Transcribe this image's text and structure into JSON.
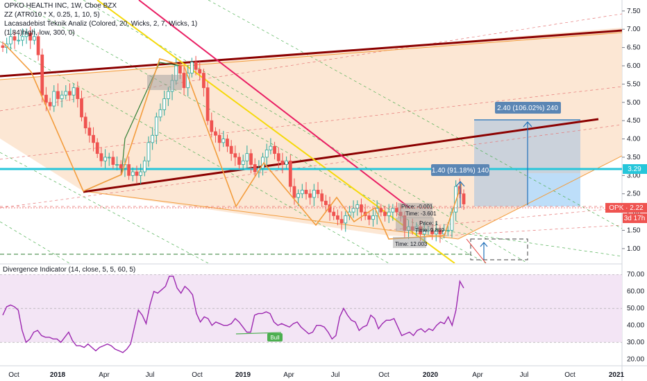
{
  "legend": {
    "title": "OPKO HEALTH INC, 1W, Cboe BZX",
    "lines": [
      "ZZ (ATR010 * X, 0.25, 1, 10, 5)",
      "Lacasadebist Teknik Analiz (Colored, 20, Wicks, 2, 7, Wicks, 1)",
      "(1.84)high, low, 300, 0)"
    ]
  },
  "indicator_legend": "Divergence Indicator (14, close, 5, 5, 60, 5)",
  "colors": {
    "up": "#26a69a",
    "down": "#ef5350",
    "zz": "#f39c3c",
    "channel": "#8b0000",
    "yellow": "#f5d90a",
    "magenta": "#e91e63",
    "cyan": "#26c6da",
    "rsi": "#9c27b0",
    "rsi_fill": "#f3e5f5"
  },
  "chart_data": [
    {
      "type": "candlestick",
      "title": "OPKO HEALTH INC, 1W, Cboe BZX",
      "ylim": [
        0.6,
        7.8
      ],
      "y_ticks": [
        "1.00",
        "1.50",
        "2.00",
        "2.50",
        "3.00",
        "3.50",
        "4.00",
        "4.50",
        "5.00",
        "5.50",
        "6.00",
        "6.50",
        "7.00",
        "7.50"
      ],
      "x_ticks": [
        "Oct",
        "2018",
        "Apr",
        "Jul",
        "Oct",
        "2019",
        "Apr",
        "Jul",
        "Oct",
        "2020",
        "Apr",
        "Jul",
        "Oct",
        "2021"
      ],
      "close": [
        6.5,
        6.6,
        6.8,
        6.7,
        6.7,
        6.8,
        6.9,
        6.7,
        6.8,
        6.3,
        5.2,
        5.0,
        4.9,
        5.3,
        5.1,
        5.2,
        5.3,
        5.2,
        5.4,
        5.1,
        4.6,
        4.3,
        4.1,
        3.9,
        3.6,
        3.4,
        3.5,
        3.5,
        3.3,
        3.3,
        3.2,
        3.3,
        3.0,
        3.1,
        3.0,
        3.1,
        3.4,
        3.9,
        4.1,
        4.6,
        4.8,
        5.1,
        5.3,
        5.6,
        6.0,
        5.8,
        5.4,
        5.8,
        6.1,
        5.9,
        5.8,
        5.4,
        4.5,
        4.2,
        4.1,
        3.9,
        4.0,
        3.8,
        3.6,
        3.5,
        3.3,
        3.4,
        3.6,
        3.3,
        3.1,
        3.2,
        3.5,
        3.7,
        3.8,
        3.6,
        3.4,
        3.3,
        3.4,
        2.7,
        2.4,
        2.5,
        2.6,
        2.5,
        2.4,
        2.6,
        2.5,
        2.3,
        2.2,
        2.0,
        1.9,
        1.8,
        1.7,
        1.9,
        2.0,
        2.1,
        2.2,
        2.0,
        1.9,
        1.8,
        1.9,
        2.1,
        2.0,
        1.9,
        2.0,
        2.1,
        2.0,
        1.9,
        1.5,
        1.6,
        1.5,
        1.6,
        1.4,
        1.5,
        1.5,
        1.4,
        1.5,
        1.4,
        1.5,
        1.5,
        2.0,
        2.7,
        2.5,
        2.22
      ],
      "last_price_label": "OPK · 2.22",
      "countdown": "3d 17h",
      "levels": [
        {
          "price": 3.29,
          "label": "3.29"
        }
      ],
      "annotations": [
        {
          "text": "2.40 (106.02%) 240",
          "kind": "measure"
        },
        {
          "text": "1.40 (91.18%) 140",
          "kind": "measure"
        },
        {
          "text": "Price: -0.001",
          "kind": "note"
        },
        {
          "text": "Time: -3.601",
          "kind": "note"
        },
        {
          "text": "Price: 1",
          "kind": "note"
        },
        {
          "text": "Time: 9.889",
          "kind": "note"
        },
        {
          "text": "Time: 12.003",
          "kind": "note"
        }
      ]
    },
    {
      "type": "line",
      "title": "Divergence Indicator (14, close, 5, 5, 60, 5)",
      "ylim": [
        17,
        75
      ],
      "y_ticks": [
        "20.00",
        "30.00",
        "40.00",
        "50.00",
        "60.00",
        "70.00"
      ],
      "guide_levels": [
        30,
        50,
        70
      ],
      "tag": "Bull",
      "values": [
        46,
        51,
        52,
        51,
        49,
        37,
        30,
        32,
        36,
        37,
        34,
        33,
        33,
        32,
        32,
        30,
        33,
        36,
        31,
        28,
        28,
        27,
        29,
        27,
        25,
        27,
        28,
        29,
        28,
        26,
        25,
        24,
        26,
        29,
        39,
        49,
        46,
        41,
        52,
        60,
        59,
        61,
        63,
        69,
        69,
        62,
        59,
        63,
        61,
        58,
        47,
        42,
        45,
        44,
        40,
        42,
        41,
        40,
        40,
        41,
        44,
        42,
        39,
        36,
        36,
        46,
        47,
        47,
        48,
        47,
        42,
        40,
        41,
        40,
        39,
        41,
        42,
        39,
        37,
        35,
        36,
        40,
        40,
        39,
        36,
        32,
        34,
        45,
        50,
        46,
        43,
        42,
        37,
        39,
        40,
        46,
        44,
        38,
        41,
        43,
        43,
        44,
        39,
        34,
        35,
        36,
        34,
        37,
        38,
        36,
        38,
        37,
        40,
        42,
        41,
        45,
        40,
        49,
        66,
        62
      ]
    }
  ]
}
